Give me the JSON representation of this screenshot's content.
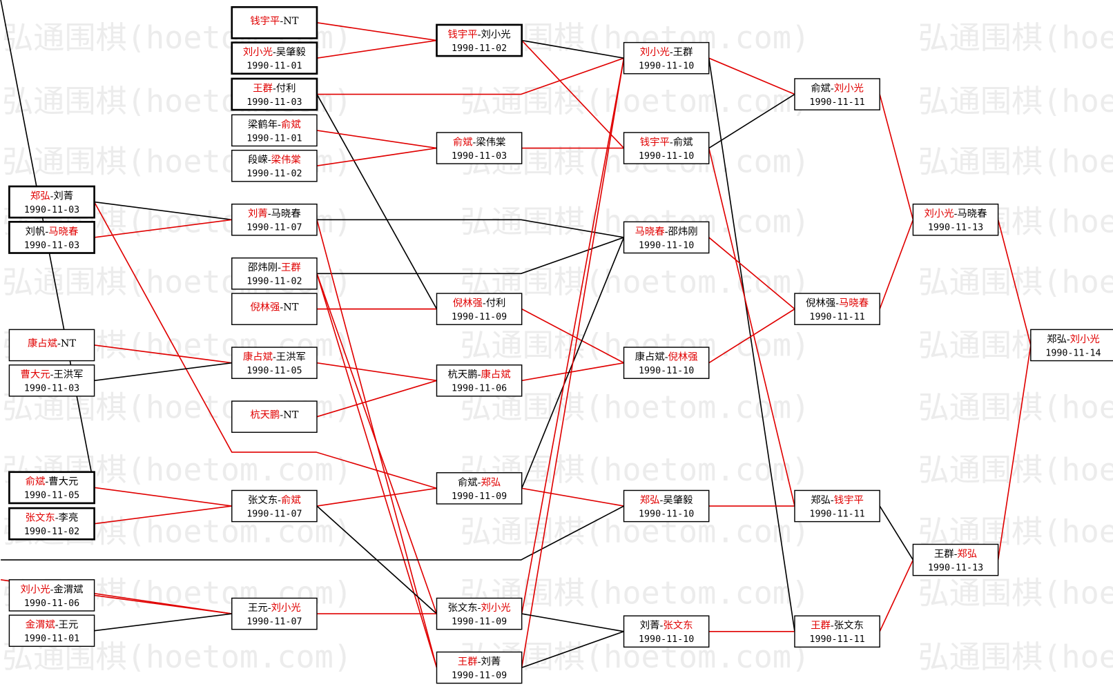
{
  "watermark": "弘通围棋(hoetom.com)",
  "separator": "-",
  "nodes": [
    {
      "players": [
        "郑弘",
        "刘菁"
      ],
      "highlight": 0,
      "date": "1990-11-03"
    },
    {
      "players": [
        "刘帆",
        "马晓春"
      ],
      "highlight": 1,
      "date": "1990-11-03"
    },
    {
      "players": [
        "康占斌",
        "NT"
      ],
      "highlight": 0
    },
    {
      "players": [
        "曹大元",
        "王洪军"
      ],
      "highlight": 0,
      "date": "1990-11-03"
    },
    {
      "players": [
        "俞斌",
        "曹大元"
      ],
      "highlight": 0,
      "date": "1990-11-05"
    },
    {
      "players": [
        "张文东",
        "李亮"
      ],
      "highlight": 0,
      "date": "1990-11-02"
    },
    {
      "players": [
        "刘小光",
        "金渭斌"
      ],
      "highlight": 0,
      "date": "1990-11-06"
    },
    {
      "players": [
        "金渭斌",
        "王元"
      ],
      "highlight": 0,
      "date": "1990-11-01"
    },
    {
      "players": [
        "钱宇平",
        "NT"
      ],
      "highlight": 0
    },
    {
      "players": [
        "刘小光",
        "吴肇毅"
      ],
      "highlight": 0,
      "date": "1990-11-01"
    },
    {
      "players": [
        "王群",
        "付利"
      ],
      "highlight": 0,
      "date": "1990-11-03"
    },
    {
      "players": [
        "梁鹤年",
        "俞斌"
      ],
      "highlight": 1,
      "date": "1990-11-01"
    },
    {
      "players": [
        "段嵘",
        "梁伟棠"
      ],
      "highlight": 1,
      "date": "1990-11-02"
    },
    {
      "players": [
        "刘菁",
        "马晓春"
      ],
      "highlight": 0,
      "date": "1990-11-07"
    },
    {
      "players": [
        "邵炜刚",
        "王群"
      ],
      "highlight": 1,
      "date": "1990-11-02"
    },
    {
      "players": [
        "倪林强",
        "NT"
      ],
      "highlight": 0
    },
    {
      "players": [
        "康占斌",
        "王洪军"
      ],
      "highlight": 0,
      "date": "1990-11-05"
    },
    {
      "players": [
        "杭天鹏",
        "NT"
      ],
      "highlight": 0
    },
    {
      "players": [
        "张文东",
        "俞斌"
      ],
      "highlight": 1,
      "date": "1990-11-07"
    },
    {
      "players": [
        "王元",
        "刘小光"
      ],
      "highlight": 1,
      "date": "1990-11-07"
    },
    {
      "players": [
        "钱宇平",
        "刘小光"
      ],
      "highlight": 0,
      "date": "1990-11-02"
    },
    {
      "players": [
        "俞斌",
        "梁伟棠"
      ],
      "highlight": 0,
      "date": "1990-11-03"
    },
    {
      "players": [
        "倪林强",
        "付利"
      ],
      "highlight": 0,
      "date": "1990-11-09"
    },
    {
      "players": [
        "杭天鹏",
        "康占斌"
      ],
      "highlight": 1,
      "date": "1990-11-06"
    },
    {
      "players": [
        "俞斌",
        "郑弘"
      ],
      "highlight": 1,
      "date": "1990-11-09"
    },
    {
      "players": [
        "张文东",
        "刘小光"
      ],
      "highlight": 1,
      "date": "1990-11-09"
    },
    {
      "players": [
        "王群",
        "刘菁"
      ],
      "highlight": 0,
      "date": "1990-11-09"
    },
    {
      "players": [
        "刘小光",
        "王群"
      ],
      "highlight": 0,
      "date": "1990-11-10"
    },
    {
      "players": [
        "钱宇平",
        "俞斌"
      ],
      "highlight": 0,
      "date": "1990-11-10"
    },
    {
      "players": [
        "马晓春",
        "邵炜刚"
      ],
      "highlight": 0,
      "date": "1990-11-10"
    },
    {
      "players": [
        "康占斌",
        "倪林强"
      ],
      "highlight": 1,
      "date": "1990-11-10"
    },
    {
      "players": [
        "郑弘",
        "吴肇毅"
      ],
      "highlight": 0,
      "date": "1990-11-10"
    },
    {
      "players": [
        "刘菁",
        "张文东"
      ],
      "highlight": 1,
      "date": "1990-11-10"
    },
    {
      "players": [
        "俞斌",
        "刘小光"
      ],
      "highlight": 1,
      "date": "1990-11-11"
    },
    {
      "players": [
        "倪林强",
        "马晓春"
      ],
      "highlight": 1,
      "date": "1990-11-11"
    },
    {
      "players": [
        "郑弘",
        "钱宇平"
      ],
      "highlight": 1,
      "date": "1990-11-11"
    },
    {
      "players": [
        "王群",
        "张文东"
      ],
      "highlight": 0,
      "date": "1990-11-11"
    },
    {
      "players": [
        "刘小光",
        "马晓春"
      ],
      "highlight": 0,
      "date": "1990-11-13"
    },
    {
      "players": [
        "王群",
        "郑弘"
      ],
      "highlight": 1,
      "date": "1990-11-13"
    },
    {
      "players": [
        "郑弘",
        "刘小光"
      ],
      "highlight": 1,
      "date": "1990-11-14"
    }
  ]
}
